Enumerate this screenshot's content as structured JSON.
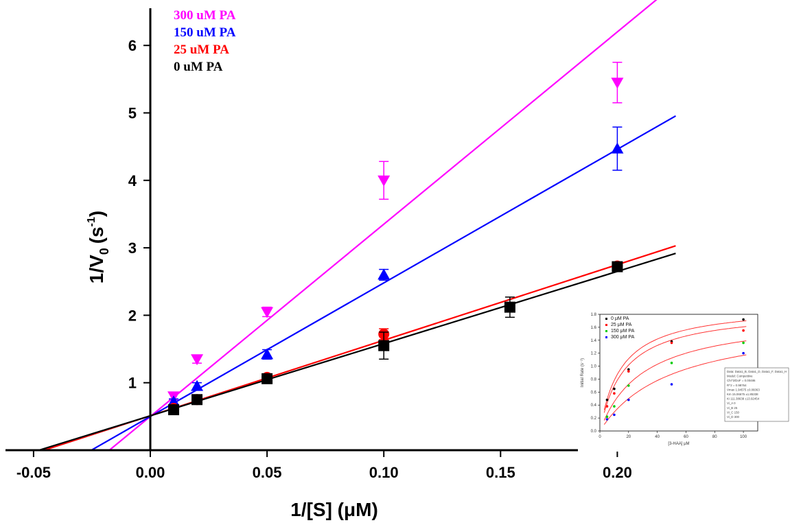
{
  "chart_data": [
    {
      "type": "scatter",
      "title": "",
      "xlabel": "1/[S] (μM)",
      "ylabel": "1/V",
      "ylabel_sub": "0",
      "ylabel_unit": "(s",
      "ylabel_sup": "-1",
      "ylabel_close": ")",
      "xlim": [
        -0.058,
        0.225
      ],
      "ylim": [
        0,
        6.5
      ],
      "x_ticks": [
        -0.05,
        0.0,
        0.05,
        0.1,
        0.15,
        0.2
      ],
      "x_tick_labels": [
        "-0.05",
        "0.00",
        "0.05",
        "0.10",
        "0.15",
        "0.20"
      ],
      "y_ticks": [
        1,
        2,
        3,
        4,
        5,
        6
      ],
      "y_tick_labels": [
        "1",
        "2",
        "3",
        "4",
        "5",
        "6"
      ],
      "legend_position": "top-left",
      "grid": false,
      "series": [
        {
          "name": "300 uM PA",
          "color": "#ff00ff",
          "marker": "triangle-down",
          "x": [
            0.01,
            0.02,
            0.05,
            0.1,
            0.2
          ],
          "y": [
            0.8,
            1.35,
            2.05,
            4.0,
            5.45
          ],
          "err": [
            0.05,
            0.06,
            0.07,
            0.28,
            0.3
          ],
          "fit": {
            "slope": 28.5,
            "intercept": 0.5
          }
        },
        {
          "name": "150 uM PA",
          "color": "#0000ff",
          "marker": "triangle-up",
          "x": [
            0.01,
            0.02,
            0.05,
            0.1,
            0.2
          ],
          "y": [
            0.72,
            0.95,
            1.42,
            2.6,
            4.47
          ],
          "err": [
            0.04,
            0.05,
            0.07,
            0.08,
            0.32
          ],
          "fit": {
            "slope": 19.8,
            "intercept": 0.5
          }
        },
        {
          "name": "25 uM PA",
          "color": "#ff0000",
          "marker": "circle",
          "x": [
            0.01,
            0.02,
            0.05,
            0.1,
            0.2
          ],
          "y": [
            0.62,
            0.75,
            1.08,
            1.72,
            2.73
          ],
          "err": [
            0.04,
            0.04,
            0.04,
            0.08,
            0.06
          ],
          "fit": {
            "slope": 11.2,
            "intercept": 0.51
          }
        },
        {
          "name": "0 uM PA",
          "color": "#000000",
          "marker": "square",
          "x": [
            0.01,
            0.02,
            0.05,
            0.1,
            0.154,
            0.2
          ],
          "y": [
            0.6,
            0.75,
            1.06,
            1.55,
            2.12,
            2.72
          ],
          "err": [
            0.04,
            0.04,
            0.04,
            0.2,
            0.15,
            0.06
          ],
          "fit": {
            "slope": 10.7,
            "intercept": 0.51
          }
        }
      ]
    },
    {
      "type": "scatter",
      "title": "",
      "xlabel": "[3-HAA] μM",
      "ylabel": "Initial Rate (s⁻¹)",
      "xlim": [
        0,
        110
      ],
      "ylim": [
        0,
        1.8
      ],
      "x_tick_labels": [
        "0",
        "20",
        "40",
        "60",
        "80",
        "100"
      ],
      "x_ticks": [
        0,
        20,
        40,
        60,
        80,
        100
      ],
      "y_tick_labels": [
        "0.0",
        "0.2",
        "0.4",
        "0.6",
        "0.8",
        "1.0",
        "1.2",
        "1.4",
        "1.6",
        "1.8"
      ],
      "y_ticks": [
        0,
        0.2,
        0.4,
        0.6,
        0.8,
        1.0,
        1.2,
        1.4,
        1.6,
        1.8
      ],
      "legend_position": "top-left",
      "series": [
        {
          "name": "0   μM   PA",
          "color": "#000000",
          "x": [
            5,
            10,
            20,
            50,
            100
          ],
          "y": [
            0.48,
            0.65,
            0.95,
            1.38,
            1.72
          ],
          "fit": {
            "vmax": 1.95,
            "km": 15
          }
        },
        {
          "name": "25   μM   PA",
          "color": "#ff0000",
          "x": [
            5,
            10,
            20,
            50,
            100
          ],
          "y": [
            0.38,
            0.58,
            0.92,
            1.36,
            1.55
          ],
          "fit": {
            "vmax": 1.88,
            "km": 17
          }
        },
        {
          "name": "150   μM   PA",
          "color": "#00cc00",
          "x": [
            5,
            10,
            20,
            50,
            100
          ],
          "y": [
            0.22,
            0.38,
            0.7,
            1.05,
            1.36
          ],
          "fit": {
            "vmax": 1.8,
            "km": 30
          }
        },
        {
          "name": "300   μM   PA",
          "color": "#0000ff",
          "x": [
            5,
            10,
            20,
            50,
            100
          ],
          "y": [
            0.18,
            0.25,
            0.48,
            0.72,
            1.2
          ],
          "fit": {
            "vmax": 1.75,
            "km": 50
          }
        }
      ],
      "annotation_box": {
        "lines": [
          "Data: Data1_B, Data1_D, Data1_F, Data1_H",
          "Model: Competitive",
          "Chi^2/DoF = 0.00486",
          "R^2 = 0.98764",
          "Vmax  1.94575  ±0.06063",
          "Km   15.06675  ±1.85338",
          "Ki  111.38638  ±13.92454",
          "Vi_A   0",
          "Vi_B   25",
          "Vi_C   150",
          "Vi_D   300"
        ]
      }
    }
  ]
}
